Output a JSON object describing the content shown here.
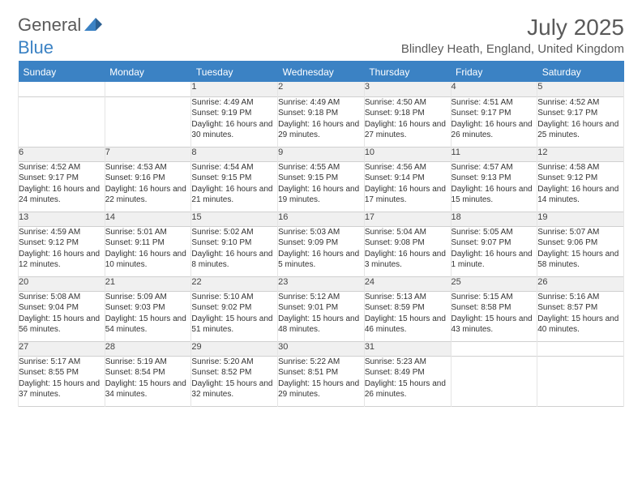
{
  "logo": {
    "part1": "General",
    "part2": "Blue"
  },
  "title": "July 2025",
  "location": "Blindley Heath, England, United Kingdom",
  "colors": {
    "header_bg": "#3b82c4",
    "header_text": "#ffffff",
    "logo_gray": "#5a5a5a",
    "logo_blue": "#3b82c4",
    "daynum_bg": "#f0f0f0",
    "cell_text": "#333333",
    "border": "#d0d0d0"
  },
  "typography": {
    "month_title_size": 28,
    "location_size": 15,
    "weekday_size": 12,
    "daynum_size": 11,
    "cell_size": 10
  },
  "weekdays": [
    "Sunday",
    "Monday",
    "Tuesday",
    "Wednesday",
    "Thursday",
    "Friday",
    "Saturday"
  ],
  "weeks": [
    [
      null,
      null,
      {
        "num": "1",
        "sunrise": "4:49 AM",
        "sunset": "9:19 PM",
        "daylight": "16 hours and 30 minutes."
      },
      {
        "num": "2",
        "sunrise": "4:49 AM",
        "sunset": "9:18 PM",
        "daylight": "16 hours and 29 minutes."
      },
      {
        "num": "3",
        "sunrise": "4:50 AM",
        "sunset": "9:18 PM",
        "daylight": "16 hours and 27 minutes."
      },
      {
        "num": "4",
        "sunrise": "4:51 AM",
        "sunset": "9:17 PM",
        "daylight": "16 hours and 26 minutes."
      },
      {
        "num": "5",
        "sunrise": "4:52 AM",
        "sunset": "9:17 PM",
        "daylight": "16 hours and 25 minutes."
      }
    ],
    [
      {
        "num": "6",
        "sunrise": "4:52 AM",
        "sunset": "9:17 PM",
        "daylight": "16 hours and 24 minutes."
      },
      {
        "num": "7",
        "sunrise": "4:53 AM",
        "sunset": "9:16 PM",
        "daylight": "16 hours and 22 minutes."
      },
      {
        "num": "8",
        "sunrise": "4:54 AM",
        "sunset": "9:15 PM",
        "daylight": "16 hours and 21 minutes."
      },
      {
        "num": "9",
        "sunrise": "4:55 AM",
        "sunset": "9:15 PM",
        "daylight": "16 hours and 19 minutes."
      },
      {
        "num": "10",
        "sunrise": "4:56 AM",
        "sunset": "9:14 PM",
        "daylight": "16 hours and 17 minutes."
      },
      {
        "num": "11",
        "sunrise": "4:57 AM",
        "sunset": "9:13 PM",
        "daylight": "16 hours and 15 minutes."
      },
      {
        "num": "12",
        "sunrise": "4:58 AM",
        "sunset": "9:12 PM",
        "daylight": "16 hours and 14 minutes."
      }
    ],
    [
      {
        "num": "13",
        "sunrise": "4:59 AM",
        "sunset": "9:12 PM",
        "daylight": "16 hours and 12 minutes."
      },
      {
        "num": "14",
        "sunrise": "5:01 AM",
        "sunset": "9:11 PM",
        "daylight": "16 hours and 10 minutes."
      },
      {
        "num": "15",
        "sunrise": "5:02 AM",
        "sunset": "9:10 PM",
        "daylight": "16 hours and 8 minutes."
      },
      {
        "num": "16",
        "sunrise": "5:03 AM",
        "sunset": "9:09 PM",
        "daylight": "16 hours and 5 minutes."
      },
      {
        "num": "17",
        "sunrise": "5:04 AM",
        "sunset": "9:08 PM",
        "daylight": "16 hours and 3 minutes."
      },
      {
        "num": "18",
        "sunrise": "5:05 AM",
        "sunset": "9:07 PM",
        "daylight": "16 hours and 1 minute."
      },
      {
        "num": "19",
        "sunrise": "5:07 AM",
        "sunset": "9:06 PM",
        "daylight": "15 hours and 58 minutes."
      }
    ],
    [
      {
        "num": "20",
        "sunrise": "5:08 AM",
        "sunset": "9:04 PM",
        "daylight": "15 hours and 56 minutes."
      },
      {
        "num": "21",
        "sunrise": "5:09 AM",
        "sunset": "9:03 PM",
        "daylight": "15 hours and 54 minutes."
      },
      {
        "num": "22",
        "sunrise": "5:10 AM",
        "sunset": "9:02 PM",
        "daylight": "15 hours and 51 minutes."
      },
      {
        "num": "23",
        "sunrise": "5:12 AM",
        "sunset": "9:01 PM",
        "daylight": "15 hours and 48 minutes."
      },
      {
        "num": "24",
        "sunrise": "5:13 AM",
        "sunset": "8:59 PM",
        "daylight": "15 hours and 46 minutes."
      },
      {
        "num": "25",
        "sunrise": "5:15 AM",
        "sunset": "8:58 PM",
        "daylight": "15 hours and 43 minutes."
      },
      {
        "num": "26",
        "sunrise": "5:16 AM",
        "sunset": "8:57 PM",
        "daylight": "15 hours and 40 minutes."
      }
    ],
    [
      {
        "num": "27",
        "sunrise": "5:17 AM",
        "sunset": "8:55 PM",
        "daylight": "15 hours and 37 minutes."
      },
      {
        "num": "28",
        "sunrise": "5:19 AM",
        "sunset": "8:54 PM",
        "daylight": "15 hours and 34 minutes."
      },
      {
        "num": "29",
        "sunrise": "5:20 AM",
        "sunset": "8:52 PM",
        "daylight": "15 hours and 32 minutes."
      },
      {
        "num": "30",
        "sunrise": "5:22 AM",
        "sunset": "8:51 PM",
        "daylight": "15 hours and 29 minutes."
      },
      {
        "num": "31",
        "sunrise": "5:23 AM",
        "sunset": "8:49 PM",
        "daylight": "15 hours and 26 minutes."
      },
      null,
      null
    ]
  ]
}
